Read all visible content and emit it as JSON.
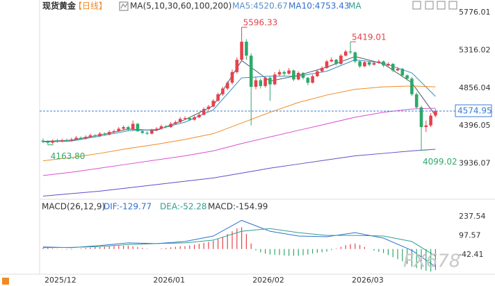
{
  "header": {
    "title": "现货黄金",
    "period": "【日线】"
  },
  "watermark": "FX678",
  "chart_data": [
    {
      "type": "candlestick",
      "legend": [
        "MA(5,10,30,60,100,200)",
        "MA5:4520.67",
        "MA10:4753.43",
        "MA"
      ],
      "legend_colors": [
        "#333333",
        "#5b8fc9",
        "#2f6fd0",
        "#2e9e8f"
      ],
      "up_color": "#e5424b",
      "down_color": "#2fa86a",
      "last_line_color": "#3a7bd5",
      "ylim": [
        3510,
        5860
      ],
      "yticks": [
        5776.01,
        5316.02,
        4856.04,
        4396.05,
        3936.07
      ],
      "categories": [
        "2025/12",
        null,
        null,
        null,
        null,
        null,
        null,
        null,
        null,
        null,
        null,
        null,
        null,
        null,
        null,
        null,
        null,
        null,
        null,
        null,
        null,
        null,
        null,
        "2026/01",
        null,
        null,
        null,
        null,
        null,
        null,
        null,
        null,
        null,
        null,
        null,
        null,
        null,
        null,
        null,
        null,
        null,
        null,
        null,
        null,
        "2026/02",
        null,
        null,
        null,
        null,
        null,
        null,
        null,
        null,
        null,
        null,
        null,
        null,
        null,
        null,
        null,
        null,
        null,
        null,
        null,
        null,
        "2026/03",
        null,
        null,
        null,
        null,
        null,
        null,
        null,
        null,
        null,
        null,
        null,
        null,
        null,
        null,
        null,
        null,
        null,
        null
      ],
      "candles": [
        [
          4215,
          4240,
          4185,
          4200
        ],
        [
          4200,
          4220,
          4163.8,
          4190
        ],
        [
          4190,
          4230,
          4175,
          4210
        ],
        [
          4210,
          4235,
          4190,
          4205
        ],
        [
          4205,
          4240,
          4195,
          4220
        ],
        [
          4220,
          4240,
          4200,
          4215
        ],
        [
          4215,
          4250,
          4205,
          4230
        ],
        [
          4230,
          4270,
          4220,
          4250
        ],
        [
          4250,
          4265,
          4225,
          4240
        ],
        [
          4240,
          4280,
          4230,
          4260
        ],
        [
          4260,
          4300,
          4250,
          4280
        ],
        [
          4280,
          4295,
          4255,
          4270
        ],
        [
          4270,
          4320,
          4260,
          4300
        ],
        [
          4300,
          4315,
          4275,
          4290
        ],
        [
          4290,
          4340,
          4280,
          4320
        ],
        [
          4320,
          4350,
          4305,
          4330
        ],
        [
          4330,
          4380,
          4320,
          4360
        ],
        [
          4360,
          4400,
          4345,
          4380
        ],
        [
          4380,
          4395,
          4335,
          4350
        ],
        [
          4350,
          4460,
          4340,
          4420
        ],
        [
          4420,
          4430,
          4320,
          4330
        ],
        [
          4330,
          4345,
          4295,
          4310
        ],
        [
          4310,
          4330,
          4285,
          4300
        ],
        [
          4300,
          4360,
          4290,
          4340
        ],
        [
          4340,
          4380,
          4330,
          4360
        ],
        [
          4360,
          4410,
          4350,
          4390
        ],
        [
          4390,
          4405,
          4365,
          4380
        ],
        [
          4380,
          4440,
          4370,
          4420
        ],
        [
          4420,
          4460,
          4410,
          4440
        ],
        [
          4440,
          4500,
          4430,
          4480
        ],
        [
          4480,
          4510,
          4465,
          4490
        ],
        [
          4490,
          4500,
          4455,
          4470
        ],
        [
          4470,
          4520,
          4460,
          4500
        ],
        [
          4500,
          4550,
          4490,
          4530
        ],
        [
          4530,
          4620,
          4520,
          4600
        ],
        [
          4600,
          4650,
          4580,
          4630
        ],
        [
          4630,
          4720,
          4620,
          4700
        ],
        [
          4700,
          4800,
          4690,
          4780
        ],
        [
          4780,
          4870,
          4760,
          4850
        ],
        [
          4850,
          4940,
          4830,
          4920
        ],
        [
          4920,
          5080,
          4900,
          5050
        ],
        [
          5050,
          5230,
          5030,
          5200
        ],
        [
          5200,
          5596.33,
          5180,
          5420
        ],
        [
          5420,
          5450,
          5200,
          5250
        ],
        [
          5250,
          5280,
          4400,
          4870
        ],
        [
          4870,
          4990,
          4840,
          4950
        ],
        [
          4950,
          4970,
          4850,
          4880
        ],
        [
          4880,
          5000,
          4860,
          4980
        ],
        [
          4980,
          5000,
          4700,
          4900
        ],
        [
          4900,
          5050,
          4890,
          5020
        ],
        [
          5020,
          5080,
          5000,
          5050
        ],
        [
          5050,
          5070,
          5000,
          5030
        ],
        [
          5030,
          5100,
          5020,
          5070
        ],
        [
          5070,
          5080,
          4940,
          4960
        ],
        [
          4960,
          5060,
          4950,
          5040
        ],
        [
          5040,
          5050,
          4960,
          4980
        ],
        [
          4980,
          4990,
          4890,
          4920
        ],
        [
          4920,
          5020,
          4910,
          5000
        ],
        [
          5000,
          5080,
          4990,
          5060
        ],
        [
          5060,
          5120,
          5050,
          5100
        ],
        [
          5100,
          5200,
          5090,
          5180
        ],
        [
          5180,
          5230,
          5170,
          5200
        ],
        [
          5200,
          5210,
          5130,
          5150
        ],
        [
          5150,
          5270,
          5140,
          5250
        ],
        [
          5250,
          5320,
          5240,
          5300
        ],
        [
          5300,
          5419.01,
          5270,
          5290
        ],
        [
          5290,
          5300,
          5160,
          5180
        ],
        [
          5180,
          5190,
          5100,
          5120
        ],
        [
          5120,
          5190,
          5110,
          5170
        ],
        [
          5170,
          5180,
          5120,
          5140
        ],
        [
          5140,
          5180,
          5130,
          5160
        ],
        [
          5160,
          5200,
          5150,
          5180
        ],
        [
          5180,
          5190,
          5110,
          5130
        ],
        [
          5130,
          5170,
          5120,
          5150
        ],
        [
          5150,
          5160,
          5050,
          5070
        ],
        [
          5070,
          5110,
          5060,
          5090
        ],
        [
          5090,
          5100,
          4990,
          5010
        ],
        [
          5010,
          5020,
          4950,
          4970
        ],
        [
          4970,
          4990,
          4760,
          4780
        ],
        [
          4780,
          4800,
          4600,
          4620
        ],
        [
          4620,
          4640,
          4099.02,
          4380
        ],
        [
          4380,
          4460,
          4320,
          4400
        ],
        [
          4400,
          4550,
          4380,
          4520
        ],
        [
          4520,
          4600,
          4500,
          4574.95
        ]
      ],
      "value_labels": [
        null,
        "4163.80",
        null,
        null,
        null,
        null,
        null,
        null,
        null,
        null,
        null,
        null,
        null,
        null,
        null,
        null,
        null,
        null,
        null,
        null,
        null,
        null,
        null,
        null,
        null,
        null,
        null,
        null,
        null,
        null,
        null,
        null,
        null,
        null,
        null,
        null,
        null,
        null,
        null,
        null,
        null,
        null,
        "5596.33",
        null,
        null,
        null,
        null,
        null,
        null,
        null,
        null,
        null,
        null,
        null,
        null,
        null,
        null,
        null,
        null,
        null,
        null,
        null,
        null,
        null,
        null,
        "5419.01",
        null,
        null,
        null,
        null,
        null,
        null,
        null,
        null,
        null,
        null,
        null,
        null,
        null,
        null,
        "4099.02",
        null,
        null,
        null
      ],
      "x": [
        0,
        6,
        12,
        18,
        24,
        30,
        36,
        42,
        48,
        54,
        60,
        66,
        72,
        78,
        83
      ],
      "series": [
        {
          "color": "#4a5560",
          "values": [
            4205,
            4220,
            4285,
            4355,
            4340,
            4470,
            4640,
            5190,
            4940,
            5010,
            5110,
            5240,
            5150,
            4920,
            4520.67
          ]
        },
        {
          "color": "#2f8fbf",
          "values": [
            4200,
            4210,
            4270,
            4335,
            4350,
            4440,
            4590,
            4980,
            5000,
            5000,
            5060,
            5200,
            5160,
            5040,
            4753.43
          ]
        },
        {
          "color": "#f08a24",
          "values": [
            3970,
            4010,
            4060,
            4120,
            4170,
            4230,
            4300,
            4430,
            4560,
            4680,
            4770,
            4840,
            4870,
            4880,
            4870
          ]
        },
        {
          "color": "#d94fd0",
          "values": [
            3790,
            3830,
            3880,
            3930,
            3980,
            4030,
            4090,
            4180,
            4260,
            4340,
            4420,
            4500,
            4560,
            4600,
            4610
          ]
        },
        {
          "color": "#5b4fc9",
          "values": [
            3540,
            3570,
            3600,
            3640,
            3680,
            3720,
            3760,
            3820,
            3880,
            3930,
            3980,
            4030,
            4060,
            4090,
            4110
          ]
        }
      ]
    },
    {
      "type": "macd",
      "legend": [
        "MACD(26,12,9)",
        "DIF:-129.77",
        "DEA:-52.28",
        "MACD:-154.99"
      ],
      "legend_colors": [
        "#333333",
        "#2f6fd0",
        "#2e9e8f",
        "#333333"
      ],
      "up_color": "#e5424b",
      "down_color": "#2fa86a",
      "ylim": [
        -185,
        350
      ],
      "yticks": [
        237.54,
        97.57,
        -42.41
      ],
      "x": [
        0,
        6,
        12,
        18,
        24,
        30,
        36,
        42,
        48,
        54,
        60,
        66,
        72,
        78,
        83
      ],
      "series": [
        {
          "color": "#2f6fd0",
          "values": [
            15,
            10,
            25,
            45,
            40,
            55,
            95,
            210,
            130,
            95,
            90,
            120,
            80,
            -10,
            -129.77
          ]
        },
        {
          "color": "#2e9e8f",
          "values": [
            10,
            12,
            18,
            33,
            40,
            45,
            65,
            130,
            150,
            120,
            100,
            100,
            95,
            55,
            -52.28
          ]
        }
      ],
      "histogram": [
        10,
        8,
        5,
        2,
        -2,
        -4,
        -4,
        0,
        4,
        8,
        11,
        14,
        14,
        16,
        19,
        22,
        24,
        24,
        24,
        20,
        14,
        8,
        3,
        0,
        0,
        4,
        8,
        12,
        16,
        20,
        20,
        26,
        32,
        38,
        45,
        52,
        60,
        75,
        90,
        110,
        130,
        150,
        160,
        110,
        40,
        -10,
        -25,
        -35,
        -40,
        -42,
        -45,
        -48,
        -50,
        -50,
        -50,
        -46,
        -40,
        -34,
        -28,
        -24,
        -20,
        -8,
        4,
        16,
        28,
        36,
        40,
        30,
        15,
        0,
        -12,
        -22,
        -30,
        -45,
        -60,
        -75,
        -90,
        -110,
        -130,
        -140,
        -150,
        -160,
        -165,
        -154.99
      ]
    }
  ]
}
